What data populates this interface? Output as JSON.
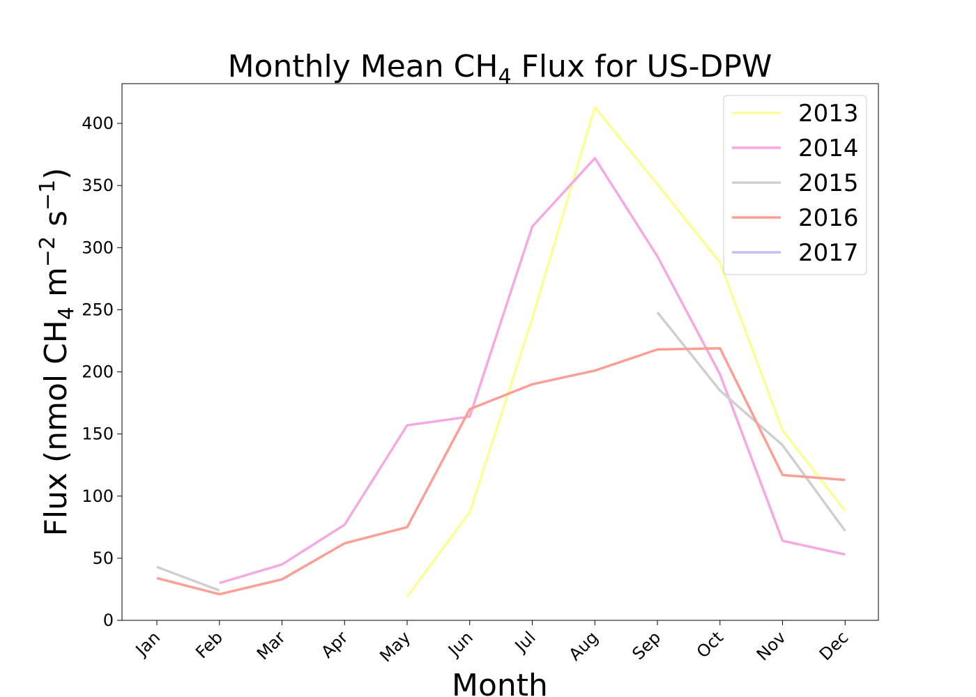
{
  "chart_data": {
    "type": "line",
    "title": {
      "prefix": "Monthly Mean CH",
      "subscript": "4",
      "suffix": " Flux for US-DPW"
    },
    "xlabel": "Month",
    "ylabel": {
      "p1": "Flux (nmol CH",
      "sub": "4",
      "p2": " m",
      "sup1": "−2",
      "p3": " s",
      "sup2": "−1",
      "p4": ")"
    },
    "categories": [
      "Jan",
      "Feb",
      "Mar",
      "Apr",
      "May",
      "Jun",
      "Jul",
      "Aug",
      "Sep",
      "Oct",
      "Nov",
      "Dec"
    ],
    "ylim": [
      0,
      432
    ],
    "yticks": [
      0,
      50,
      100,
      150,
      200,
      250,
      300,
      350,
      400
    ],
    "grid": false,
    "legend_position": "top-right",
    "series": [
      {
        "name": "2013",
        "color": "#fdfd96",
        "values": [
          null,
          null,
          null,
          null,
          19,
          87,
          243,
          413,
          351,
          288,
          153,
          88
        ]
      },
      {
        "name": "2014",
        "color": "#f5a8e2",
        "values": [
          null,
          30,
          45,
          77,
          157,
          164,
          317,
          372,
          293,
          198,
          64,
          53
        ]
      },
      {
        "name": "2015",
        "color": "#cfcfcf",
        "values": [
          43,
          24,
          null,
          null,
          null,
          null,
          null,
          null,
          248,
          185,
          141,
          72
        ]
      },
      {
        "name": "2016",
        "color": "#fb9e94",
        "values": [
          34,
          21,
          33,
          62,
          75,
          170,
          190,
          201,
          218,
          219,
          117,
          113
        ]
      },
      {
        "name": "2017",
        "color": "#cbbaf6",
        "values": [
          null,
          null,
          null,
          null,
          null,
          null,
          null,
          null,
          null,
          null,
          null,
          null
        ]
      }
    ]
  }
}
